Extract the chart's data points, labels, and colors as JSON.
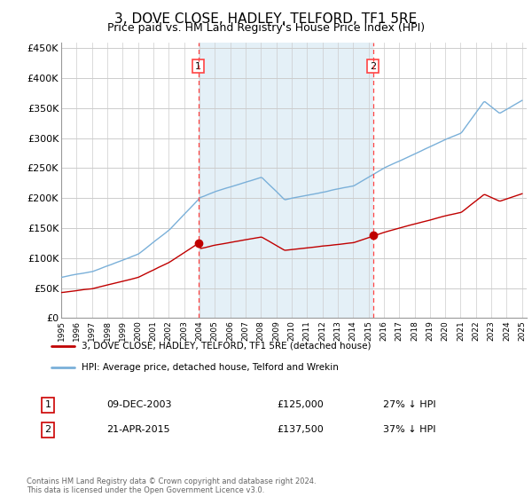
{
  "title": "3, DOVE CLOSE, HADLEY, TELFORD, TF1 5RE",
  "subtitle": "Price paid vs. HM Land Registry's House Price Index (HPI)",
  "title_fontsize": 11,
  "subtitle_fontsize": 9,
  "ylim": [
    0,
    460000
  ],
  "yticks": [
    0,
    50000,
    100000,
    150000,
    200000,
    250000,
    300000,
    350000,
    400000,
    450000
  ],
  "ytick_labels": [
    "£0",
    "£50K",
    "£100K",
    "£150K",
    "£200K",
    "£250K",
    "£300K",
    "£350K",
    "£400K",
    "£450K"
  ],
  "hpi_color": "#7ab0d9",
  "hpi_fill_color": "#d9eaf5",
  "price_color": "#c00000",
  "dashed_color": "#ff4444",
  "sale1_year": 2003.92,
  "sale1_price": 125000,
  "sale2_year": 2015.3,
  "sale2_price": 137500,
  "legend_line1": "3, DOVE CLOSE, HADLEY, TELFORD, TF1 5RE (detached house)",
  "legend_line2": "HPI: Average price, detached house, Telford and Wrekin",
  "table_row1": [
    "1",
    "09-DEC-2003",
    "£125,000",
    "27% ↓ HPI"
  ],
  "table_row2": [
    "2",
    "21-APR-2015",
    "£137,500",
    "37% ↓ HPI"
  ],
  "footnote": "Contains HM Land Registry data © Crown copyright and database right 2024.\nThis data is licensed under the Open Government Licence v3.0.",
  "background_color": "#ffffff",
  "grid_color": "#cccccc"
}
